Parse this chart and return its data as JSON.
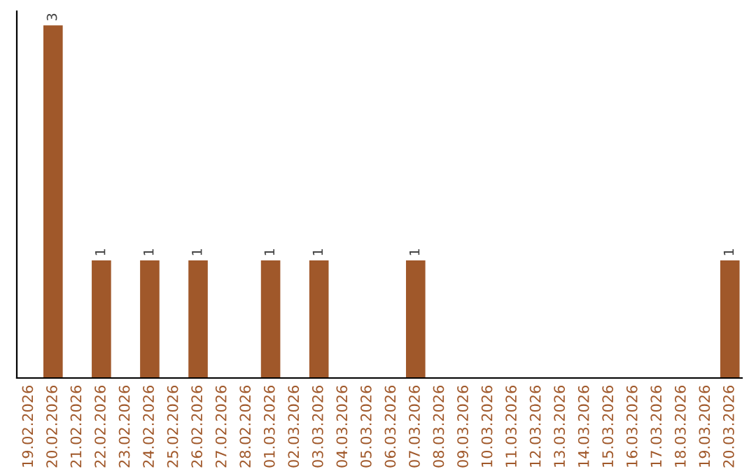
{
  "chart_data": {
    "type": "bar",
    "categories": [
      "19.02.2026",
      "20.02.2026",
      "21.02.2026",
      "22.02.2026",
      "23.02.2026",
      "24.02.2026",
      "25.02.2026",
      "26.02.2026",
      "27.02.2026",
      "28.02.2026",
      "01.03.2026",
      "02.03.2026",
      "03.03.2026",
      "04.03.2026",
      "05.03.2026",
      "06.03.2026",
      "07.03.2026",
      "08.03.2026",
      "09.03.2026",
      "10.03.2026",
      "11.03.2026",
      "12.03.2026",
      "13.03.2026",
      "14.03.2026",
      "15.03.2026",
      "16.03.2026",
      "17.03.2026",
      "18.03.2026",
      "19.03.2026",
      "20.03.2026"
    ],
    "values": [
      0,
      3,
      0,
      1,
      0,
      1,
      0,
      1,
      0,
      0,
      1,
      0,
      1,
      0,
      0,
      0,
      1,
      0,
      0,
      0,
      0,
      0,
      0,
      0,
      0,
      0,
      0,
      0,
      0,
      1
    ],
    "value_labels": [
      null,
      "3",
      null,
      "1",
      null,
      "1",
      null,
      "1",
      null,
      null,
      "1",
      null,
      "1",
      null,
      null,
      null,
      "1",
      null,
      null,
      null,
      null,
      null,
      null,
      null,
      null,
      null,
      null,
      null,
      null,
      "1"
    ],
    "color": "#a0582a",
    "tick_labels": "x",
    "grid": false,
    "legend": false
  }
}
